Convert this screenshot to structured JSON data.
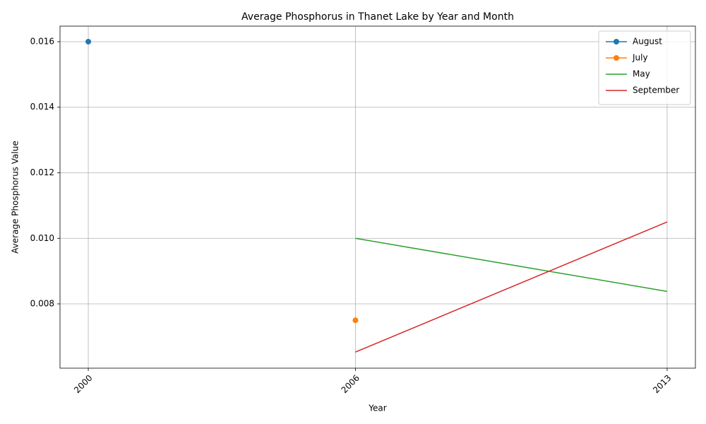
{
  "chart_data": {
    "type": "line",
    "title": "Average Phosphorus in Thanet Lake by Year and Month",
    "x_label": "Year",
    "y_label": "Average Phosphorus Value",
    "xlim": [
      1999.365,
      2013.635
    ],
    "xticks": [
      2000,
      2006,
      2013
    ],
    "ylim": [
      0.006038,
      0.016474
    ],
    "yticks": [
      {
        "value": 0.008,
        "label": "0.008"
      },
      {
        "value": 0.01,
        "label": "0.010"
      },
      {
        "value": 0.012,
        "label": "0.012"
      },
      {
        "value": 0.014,
        "label": "0.014"
      },
      {
        "value": 0.016,
        "label": "0.016"
      }
    ],
    "grid": true,
    "legend": "upper right",
    "series": [
      {
        "name": "August",
        "color": "#1f77b4",
        "marker": true,
        "x": [
          2000
        ],
        "values": [
          0.016
        ]
      },
      {
        "name": "July",
        "color": "#ff7f0e",
        "marker": true,
        "x": [
          2006
        ],
        "values": [
          0.0075
        ]
      },
      {
        "name": "May",
        "color": "#2ca02c",
        "marker": false,
        "x": [
          2006,
          2013
        ],
        "values": [
          0.01,
          0.00838
        ]
      },
      {
        "name": "September",
        "color": "#d62728",
        "marker": false,
        "x": [
          2006,
          2013
        ],
        "values": [
          0.00653,
          0.0105
        ]
      }
    ]
  }
}
